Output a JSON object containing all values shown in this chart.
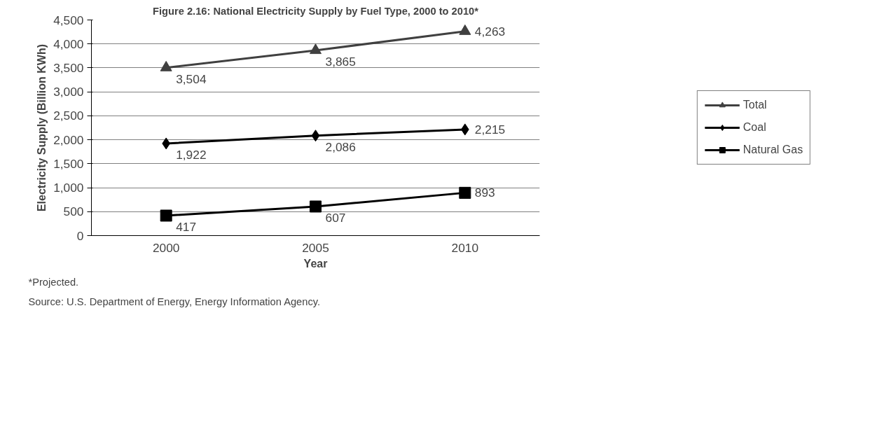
{
  "chart_data": {
    "type": "line",
    "title": "Figure 2.16: National Electricity Supply by Fuel Type, 2000 to 2010*",
    "xlabel": "Year",
    "ylabel": "Electricity Supply (Billion KWh)",
    "categories": [
      "2000",
      "2005",
      "2010"
    ],
    "series": [
      {
        "name": "Total",
        "color": "#404040",
        "marker": "triangle",
        "values": [
          3504,
          3865,
          4263
        ],
        "value_labels": [
          "3,504",
          "3,865",
          "4,263"
        ]
      },
      {
        "name": "Coal",
        "color": "#000000",
        "marker": "diamond",
        "values": [
          1922,
          2086,
          2215
        ],
        "value_labels": [
          "1,922",
          "2,086",
          "2,215"
        ]
      },
      {
        "name": "Natural Gas",
        "color": "#000000",
        "marker": "square",
        "values": [
          417,
          607,
          893
        ],
        "value_labels": [
          "417",
          "607",
          "893"
        ]
      }
    ],
    "ylim": [
      0,
      4500
    ],
    "yticks": [
      {
        "value": 0,
        "label": "0"
      },
      {
        "value": 500,
        "label": "500"
      },
      {
        "value": 1000,
        "label": "1,000"
      },
      {
        "value": 1500,
        "label": "1,500"
      },
      {
        "value": 2000,
        "label": "2,000"
      },
      {
        "value": 2500,
        "label": "2,500"
      },
      {
        "value": 3000,
        "label": "3,000"
      },
      {
        "value": 3500,
        "label": "3,500"
      },
      {
        "value": 4000,
        "label": "4,000"
      },
      {
        "value": 4500,
        "label": "4,500"
      }
    ],
    "data_labels": true,
    "grid": "y",
    "legend": "right",
    "line_style": "solid",
    "annotations": [
      "*Projected.",
      "Source: U.S. Department of Energy, Energy Information Agency."
    ]
  }
}
